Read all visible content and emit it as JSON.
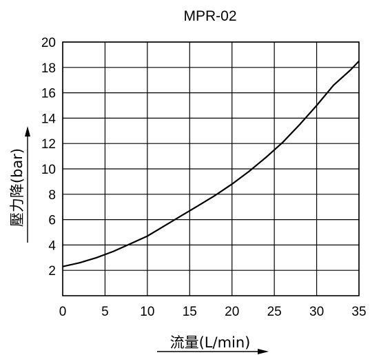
{
  "chart_data": {
    "type": "line",
    "title": "MPR-02",
    "xlabel": "流量(L/min)",
    "ylabel": "壓力降(bar)",
    "xlim": [
      0,
      35
    ],
    "ylim": [
      0,
      20
    ],
    "xticks": [
      0,
      5,
      10,
      15,
      20,
      25,
      30,
      35
    ],
    "yticks": [
      2,
      4,
      6,
      8,
      10,
      12,
      14,
      16,
      18,
      20
    ],
    "grid": true,
    "legend": "none",
    "series": [
      {
        "x": [
          0,
          2,
          4,
          6,
          8,
          10,
          12,
          14,
          16,
          18,
          20,
          22,
          24,
          26,
          28,
          30,
          32,
          34,
          35
        ],
        "y": [
          2.3,
          2.6,
          3.0,
          3.5,
          4.1,
          4.7,
          5.5,
          6.3,
          7.1,
          7.9,
          8.8,
          9.8,
          10.9,
          12.1,
          13.5,
          15.0,
          16.6,
          17.8,
          18.5
        ]
      }
    ],
    "line_color": "#000000",
    "grid_color": "#000000"
  }
}
